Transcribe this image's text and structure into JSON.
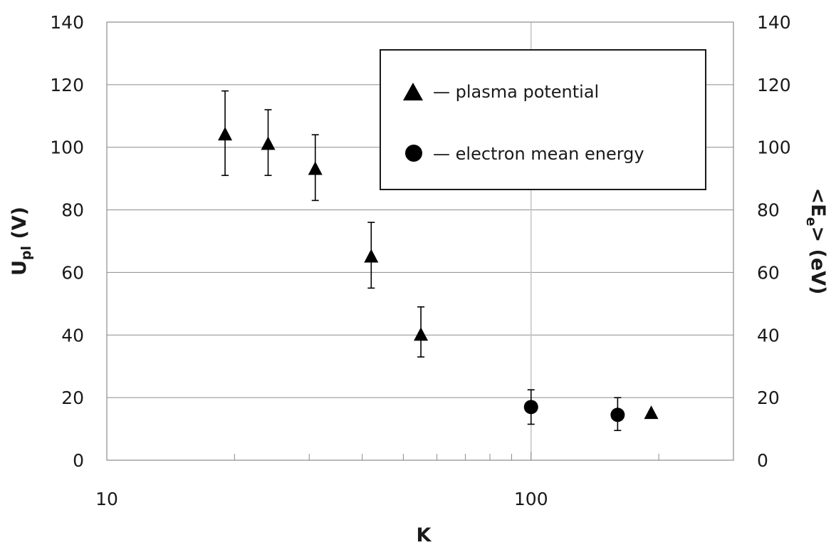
{
  "chart_data": {
    "type": "scatter",
    "title": "",
    "xlabel": "K",
    "ylabel": "Upl (V)",
    "ylabel_main": "U",
    "ylabel_sub": "pl",
    "ylabel_tail": " (V)",
    "y2label": "<Ee> (eV)",
    "y2label_main": "<E",
    "y2label_sub": "e",
    "y2label_tail": "> (eV)",
    "x_scale": "log",
    "xlim": [
      10,
      300
    ],
    "ylim": [
      0,
      140
    ],
    "y2lim": [
      0,
      140
    ],
    "x_ticks": [
      10,
      100
    ],
    "y_ticks": [
      0,
      20,
      40,
      60,
      80,
      100,
      120,
      140
    ],
    "grid": true,
    "legend_position": "top-right",
    "series": [
      {
        "name": "plasma potential",
        "legend_label": "— plasma potential",
        "marker": "triangle",
        "axis": "left",
        "x": [
          19,
          24,
          31,
          42,
          55,
          192
        ],
        "y": [
          104,
          101,
          93,
          65,
          40,
          15
        ],
        "err_low": [
          13,
          10,
          10,
          10,
          7,
          null
        ],
        "err_high": [
          14,
          11,
          11,
          11,
          9,
          null
        ]
      },
      {
        "name": "electron mean energy",
        "legend_label": "— electron mean energy",
        "marker": "circle",
        "axis": "right",
        "x": [
          100,
          160
        ],
        "y": [
          17,
          14.5
        ],
        "err_low": [
          5.5,
          5
        ],
        "err_high": [
          5.5,
          5.5
        ]
      }
    ]
  }
}
